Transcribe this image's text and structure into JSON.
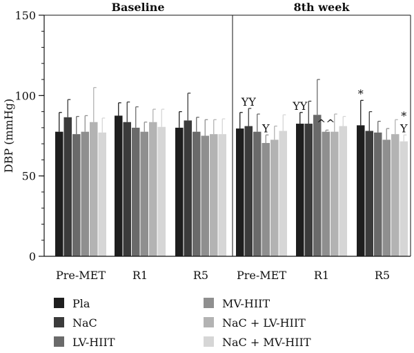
{
  "chart_data": {
    "type": "bar",
    "ylabel": "DBP (mmHg)",
    "ylim": [
      0,
      150
    ],
    "yticks": [
      0,
      50,
      100,
      150
    ],
    "panels": [
      {
        "title": "Baseline",
        "groups": [
          {
            "category": "Pre-MET",
            "values": [
              77.5,
              86.5,
              76,
              77.5,
              83.5,
              77
            ],
            "errors": [
              12,
              11,
              11,
              10,
              21.5,
              9
            ]
          },
          {
            "category": "R1",
            "values": [
              87.5,
              83.5,
              80,
              77.5,
              83.5,
              80.5
            ],
            "errors": [
              8,
              12.5,
              13,
              6,
              8,
              11
            ]
          },
          {
            "category": "R5",
            "values": [
              80,
              84.5,
              77.5,
              75,
              76,
              76
            ],
            "errors": [
              10,
              17,
              9,
              10,
              9,
              9.5
            ]
          }
        ]
      },
      {
        "title": "8th week",
        "groups": [
          {
            "category": "Pre-MET",
            "values": [
              79.5,
              81,
              77.5,
              70.5,
              72.5,
              78
            ],
            "errors": [
              10,
              11,
              11,
              5,
              8.5,
              10
            ]
          },
          {
            "category": "R1",
            "values": [
              82.5,
              82.5,
              88,
              77.5,
              77.5,
              81
            ],
            "errors": [
              7,
              14,
              22,
              1,
              11,
              6
            ]
          },
          {
            "category": "R5",
            "values": [
              81.5,
              78,
              77,
              72.5,
              76,
              71.5
            ],
            "errors": [
              15.5,
              12,
              7,
              7,
              9,
              4
            ]
          }
        ]
      }
    ],
    "series": [
      {
        "name": "Pla",
        "color": "#1e1e1e"
      },
      {
        "name": "NaC",
        "color": "#3b3b3b"
      },
      {
        "name": "LV-HIIT",
        "color": "#6a6a6a"
      },
      {
        "name": "MV-HIIT",
        "color": "#8f8f8f"
      },
      {
        "name": "NaC + LV-HIIT",
        "color": "#b3b3b3"
      },
      {
        "name": "NaC + MV-HIIT",
        "color": "#d6d6d6"
      }
    ],
    "annotations": [
      {
        "panel": 1,
        "group": 0,
        "series": 1,
        "lines": [
          "YY"
        ]
      },
      {
        "panel": 1,
        "group": 0,
        "series": 3,
        "lines": [
          "Y"
        ]
      },
      {
        "panel": 1,
        "group": 1,
        "series": 0,
        "lines": [
          "YY"
        ]
      },
      {
        "panel": 1,
        "group": 1,
        "series": 3,
        "lines": [
          "^^"
        ]
      },
      {
        "panel": 1,
        "group": 2,
        "series": 0,
        "lines": [
          "*"
        ]
      },
      {
        "panel": 1,
        "group": 2,
        "series": 5,
        "lines": [
          "*",
          "Y"
        ]
      }
    ],
    "legend_position": "bottom"
  }
}
